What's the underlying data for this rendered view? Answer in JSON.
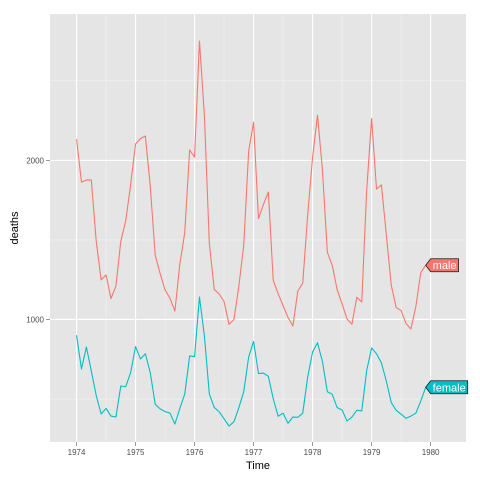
{
  "chart_data": {
    "type": "line",
    "title": "",
    "xlabel": "Time",
    "ylabel": "deaths",
    "xlim": [
      1973.55,
      1980.6
    ],
    "ylim": [
      230,
      2920
    ],
    "xticks": [
      1974,
      1975,
      1976,
      1977,
      1978,
      1979,
      1980
    ],
    "xtick_labels": [
      "1974",
      "1975",
      "1976",
      "1977",
      "1978",
      "1979",
      "1980"
    ],
    "yticks": [
      1000,
      2000
    ],
    "ytick_labels": [
      "1000",
      "2000"
    ],
    "grid": true,
    "legend": "none",
    "x_start": 1974,
    "x_step_months": 1,
    "series": [
      {
        "name": "male",
        "color": "#F8766D",
        "label_text_color": "#ffffff",
        "values": [
          2134,
          1863,
          1877,
          1877,
          1492,
          1249,
          1280,
          1131,
          1209,
          1492,
          1621,
          1846,
          2103,
          2137,
          2153,
          1833,
          1403,
          1288,
          1186,
          1133,
          1053,
          1347,
          1545,
          2066,
          2020,
          2750,
          2283,
          1479,
          1189,
          1160,
          1113,
          970,
          999,
          1208,
          1467,
          2059,
          2240,
          1634,
          1722,
          1801,
          1246,
          1162,
          1087,
          1013,
          959,
          1179,
          1229,
          1655,
          2019,
          2284,
          1942,
          1423,
          1340,
          1187,
          1098,
          1004,
          970,
          1140,
          1110,
          1812,
          2263,
          1820,
          1846,
          1531,
          1215,
          1075,
          1056,
          975,
          940,
          1081,
          1294,
          1341
        ]
      },
      {
        "name": "female",
        "color": "#00BFC4",
        "label_text_color": "#ffffff",
        "values": [
          901,
          689,
          827,
          677,
          522,
          406,
          441,
          393,
          387,
          582,
          578,
          666,
          830,
          752,
          785,
          664,
          467,
          438,
          421,
          412,
          343,
          440,
          531,
          771,
          767,
          1141,
          896,
          532,
          447,
          420,
          376,
          330,
          357,
          445,
          546,
          764,
          862,
          660,
          663,
          643,
          502,
          392,
          411,
          348,
          387,
          385,
          411,
          638,
          796,
          853,
          737,
          546,
          530,
          446,
          431,
          362,
          387,
          430,
          425,
          679,
          821,
          785,
          727,
          612,
          478,
          429,
          405,
          379,
          393,
          411,
          487,
          574
        ]
      }
    ]
  }
}
